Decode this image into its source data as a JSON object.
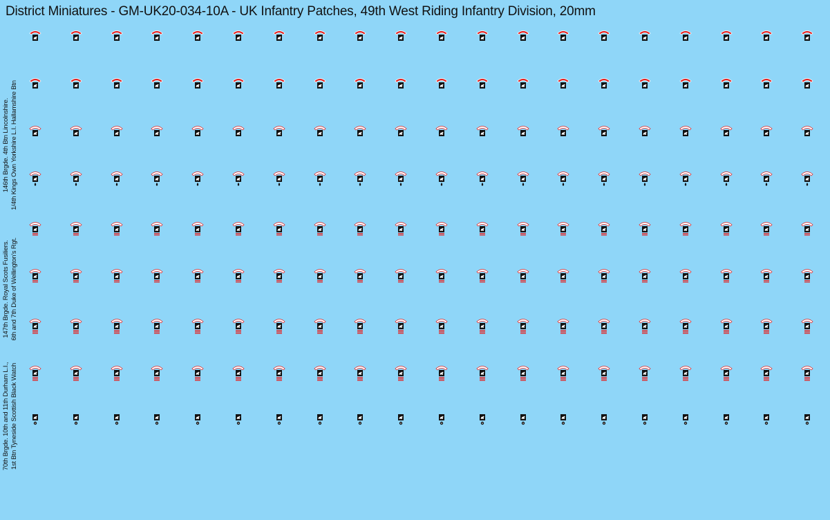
{
  "title": "District Miniatures - GM-UK20-034-10A - UK Infantry Patches, 49th West Riding Infantry Division, 20mm",
  "side_labels": [
    {
      "lines": [
        "146th  Brgde. 4th Btn Lincolnshire.",
        "1/4th Kings Own Yorkshire L.I. Hallamshire Btn"
      ]
    },
    {
      "lines": [
        "147th Brgde. Royal Scots Fusiliers.",
        "6th and 7th Duke of Wellington's Rgt."
      ]
    },
    {
      "lines": [
        "70th Brgde. 10th and 11th Durham L.I.,",
        "1st Btn Tyneside Scottish Black Watch"
      ]
    }
  ],
  "patch_columns": 20,
  "patch_rows": [
    {
      "tab": "red",
      "below": "none"
    },
    {
      "tab": "red",
      "below": "none"
    },
    {
      "tab": "white",
      "below": "none"
    },
    {
      "tab": "white",
      "below": "drop"
    },
    {
      "tab": "white",
      "below": "bars2"
    },
    {
      "tab": "white",
      "below": "bars2"
    },
    {
      "tab": "white",
      "below": "bars3"
    },
    {
      "tab": "white",
      "below": "bars3"
    },
    {
      "tab": "none",
      "below": "flower"
    }
  ],
  "colors": {
    "background": "#8fd6f8",
    "red": "#e32322",
    "black": "#111111",
    "white": "#ffffff"
  }
}
